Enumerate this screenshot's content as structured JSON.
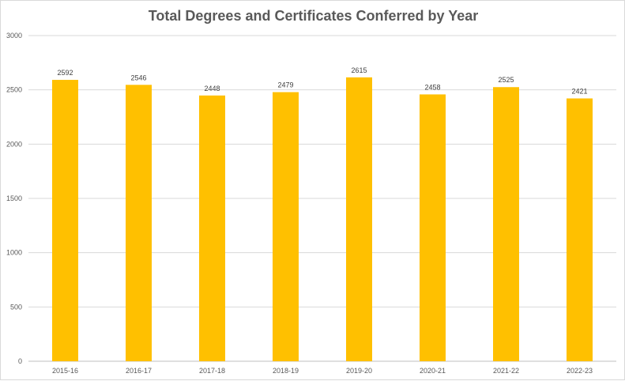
{
  "chart_data": {
    "type": "bar",
    "title": "Total Degrees and Certificates Conferred by Year",
    "categories": [
      "2015-16",
      "2016-17",
      "2017-18",
      "2018-19",
      "2019-20",
      "2020-21",
      "2021-22",
      "2022-23"
    ],
    "values": [
      2592,
      2546,
      2448,
      2479,
      2615,
      2458,
      2525,
      2421
    ],
    "ylim": [
      0,
      3000
    ],
    "yticks": [
      0,
      500,
      1000,
      1500,
      2000,
      2500,
      3000
    ],
    "grid": true,
    "legend": "none",
    "bar_color": "#FFC000",
    "data_labels": true
  }
}
